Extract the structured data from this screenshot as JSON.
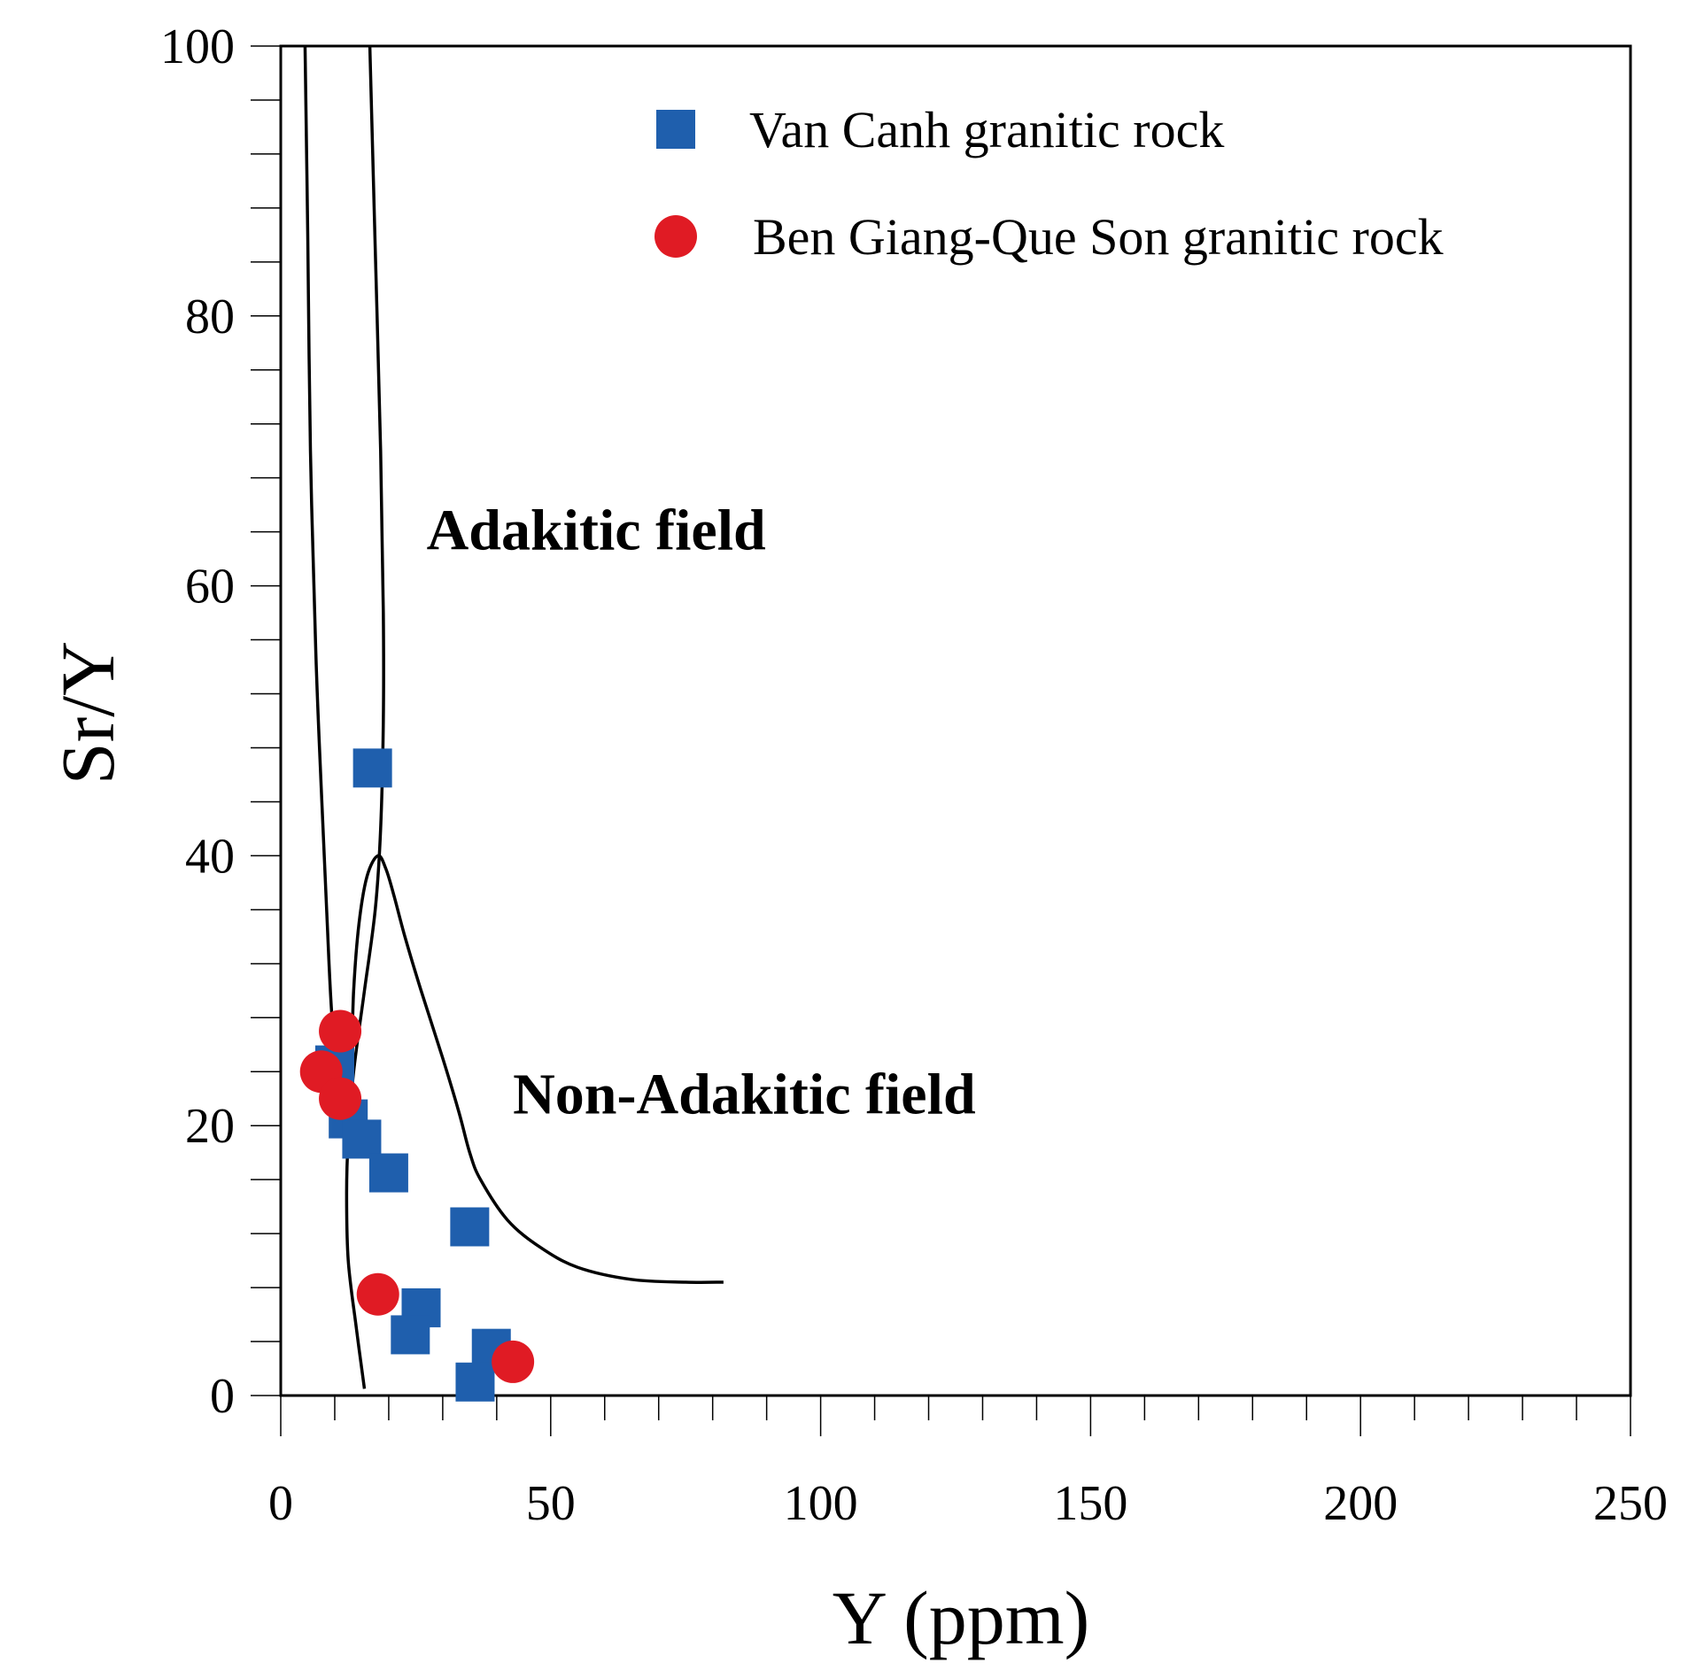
{
  "chart_data": {
    "type": "scatter",
    "title": "",
    "xlabel": "Y (ppm)",
    "ylabel": "Sr/Y",
    "xlim": [
      0,
      250
    ],
    "ylim": [
      0,
      100
    ],
    "xticks": [
      0,
      50,
      100,
      150,
      200,
      250
    ],
    "yticks": [
      0,
      20,
      40,
      60,
      80,
      100
    ],
    "x_minor_step": 10,
    "y_minor_step": 4,
    "grid": false,
    "legend_position": "top-right",
    "series": [
      {
        "name": "Van Canh granitic rock",
        "marker": "square",
        "color": "#1f5fad",
        "points": [
          {
            "x": 17,
            "y": 46.5
          },
          {
            "x": 10,
            "y": 24.5
          },
          {
            "x": 12.5,
            "y": 20.5
          },
          {
            "x": 15,
            "y": 19
          },
          {
            "x": 20,
            "y": 16.5
          },
          {
            "x": 35,
            "y": 12.5
          },
          {
            "x": 26,
            "y": 6.5
          },
          {
            "x": 24,
            "y": 4.5
          },
          {
            "x": 39,
            "y": 3.5
          },
          {
            "x": 36,
            "y": 1
          }
        ]
      },
      {
        "name": "Ben Giang-Que Son granitic rock",
        "marker": "circle",
        "color": "#e01b24",
        "points": [
          {
            "x": 11,
            "y": 27
          },
          {
            "x": 7.5,
            "y": 24
          },
          {
            "x": 11,
            "y": 22
          },
          {
            "x": 18,
            "y": 7.5
          },
          {
            "x": 43,
            "y": 2.5
          }
        ]
      }
    ],
    "boundary_curves": [
      {
        "name": "adakitic-boundary-curve",
        "points": [
          [
            4.5,
            100
          ],
          [
            5,
            86
          ],
          [
            5.5,
            70
          ],
          [
            6.5,
            55
          ],
          [
            7.5,
            45
          ],
          [
            8.5,
            36
          ],
          [
            9.5,
            28
          ],
          [
            11,
            23
          ],
          [
            12,
            22
          ],
          [
            13,
            24
          ],
          [
            13.5,
            30
          ],
          [
            14.5,
            35
          ],
          [
            16,
            38.5
          ],
          [
            18,
            40
          ],
          [
            19.5,
            39
          ],
          [
            21,
            37
          ],
          [
            23,
            34
          ],
          [
            26,
            30
          ],
          [
            30,
            25
          ],
          [
            33,
            21
          ],
          [
            35,
            18
          ],
          [
            37,
            16
          ],
          [
            42,
            13
          ],
          [
            48,
            11
          ],
          [
            55,
            9.5
          ],
          [
            65,
            8.6
          ],
          [
            75,
            8.4
          ],
          [
            82,
            8.4
          ]
        ]
      },
      {
        "name": "non-adakitic-boundary-curve",
        "points": [
          [
            16.5,
            100
          ],
          [
            17.5,
            85
          ],
          [
            18.5,
            70
          ],
          [
            19,
            58
          ],
          [
            19,
            50
          ],
          [
            18.5,
            42
          ],
          [
            17.5,
            36
          ],
          [
            15.5,
            30
          ],
          [
            13.5,
            24
          ],
          [
            12.5,
            19
          ],
          [
            12.2,
            15
          ],
          [
            12.5,
            10
          ],
          [
            14,
            5
          ],
          [
            15.5,
            0.5
          ]
        ]
      }
    ],
    "annotations": [
      {
        "text": "Adakitic field",
        "x": 27,
        "y": 62.7
      },
      {
        "text": "Non-Adakitic field",
        "x": 43,
        "y": 20.9
      }
    ]
  }
}
